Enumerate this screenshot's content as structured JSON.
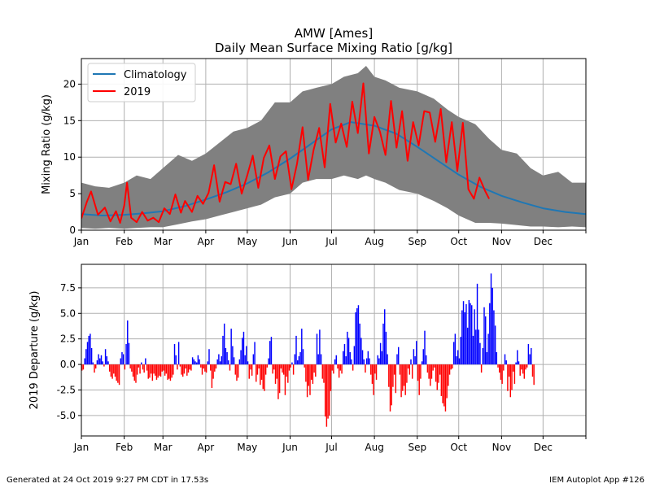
{
  "chart_data": [
    {
      "type": "line",
      "title": "AMW [Ames]",
      "subtitle": "Daily Mean Surface Mixing Ratio [g/kg]",
      "ylabel": "Mixing Ratio (g/kg)",
      "xlabel": "",
      "ylim": [
        0,
        23.5
      ],
      "xlim": [
        0,
        365
      ],
      "grid": true,
      "legend_position": "top-left",
      "x_ticks": [
        {
          "label": "Jan",
          "day": 0
        },
        {
          "label": "Feb",
          "day": 31
        },
        {
          "label": "Mar",
          "day": 59
        },
        {
          "label": "Apr",
          "day": 90
        },
        {
          "label": "May",
          "day": 120
        },
        {
          "label": "Jun",
          "day": 151
        },
        {
          "label": "Jul",
          "day": 181
        },
        {
          "label": "Aug",
          "day": 212
        },
        {
          "label": "Sep",
          "day": 243
        },
        {
          "label": "Oct",
          "day": 273
        },
        {
          "label": "Nov",
          "day": 304
        },
        {
          "label": "Dec",
          "day": 334
        }
      ],
      "y_ticks": [
        0,
        5,
        10,
        15,
        20
      ],
      "series": [
        {
          "name": "Climatology",
          "color": "#1f77b4",
          "x": [
            0,
            15,
            31,
            45,
            59,
            75,
            90,
            105,
            120,
            135,
            151,
            166,
            181,
            195,
            212,
            228,
            243,
            258,
            273,
            289,
            304,
            319,
            334,
            350,
            365
          ],
          "y": [
            2.2,
            2.0,
            2.1,
            2.3,
            2.6,
            3.3,
            4.2,
            5.2,
            6.4,
            7.9,
            9.8,
            11.8,
            13.8,
            14.8,
            14.3,
            13.2,
            11.4,
            9.5,
            7.6,
            5.9,
            4.7,
            3.8,
            3.0,
            2.5,
            2.2
          ]
        },
        {
          "name": "2019",
          "color": "#ff0000",
          "x": [
            0,
            4,
            7,
            12,
            17,
            21,
            25,
            28,
            31,
            33,
            36,
            40,
            44,
            48,
            52,
            56,
            60,
            64,
            68,
            72,
            75,
            80,
            84,
            88,
            92,
            96,
            100,
            104,
            108,
            112,
            116,
            120,
            124,
            128,
            132,
            136,
            140,
            144,
            148,
            152,
            156,
            160,
            164,
            168,
            172,
            176,
            180,
            184,
            188,
            192,
            196,
            200,
            204,
            208,
            212,
            216,
            220,
            224,
            228,
            232,
            236,
            240,
            244,
            248,
            252,
            256,
            260,
            264,
            268,
            272,
            276,
            280,
            284,
            288,
            292,
            295
          ],
          "y": [
            1.6,
            3.9,
            5.3,
            2.1,
            3.1,
            1.2,
            2.6,
            1.0,
            3.4,
            6.5,
            1.7,
            1.1,
            2.5,
            1.3,
            1.7,
            1.1,
            3.0,
            2.2,
            4.9,
            2.4,
            4.0,
            2.5,
            4.7,
            3.6,
            5.1,
            8.9,
            3.9,
            6.6,
            6.3,
            9.1,
            5.0,
            7.5,
            10.2,
            5.8,
            9.9,
            11.6,
            7.0,
            10.1,
            10.8,
            5.6,
            9.1,
            14.1,
            6.9,
            11.0,
            14.0,
            8.6,
            17.3,
            12.0,
            14.6,
            11.4,
            17.6,
            13.3,
            20.1,
            10.5,
            15.5,
            13.5,
            10.3,
            17.7,
            11.3,
            16.3,
            9.5,
            14.8,
            11.6,
            16.3,
            16.1,
            12.1,
            16.6,
            9.3,
            14.8,
            8.1,
            14.7,
            5.6,
            4.3,
            7.2,
            5.4,
            4.3
          ]
        }
      ],
      "range_band": {
        "name": "daily range",
        "color": "#808080",
        "x": [
          0,
          10,
          20,
          31,
          40,
          50,
          59,
          70,
          80,
          90,
          100,
          110,
          120,
          130,
          140,
          151,
          160,
          170,
          181,
          190,
          200,
          206,
          212,
          220,
          230,
          243,
          255,
          265,
          273,
          285,
          295,
          304,
          315,
          325,
          334,
          345,
          355,
          365
        ],
        "max": [
          6.5,
          6.0,
          5.8,
          6.5,
          7.5,
          7.0,
          8.5,
          10.3,
          9.5,
          10.5,
          12.0,
          13.5,
          14.0,
          15.0,
          17.5,
          17.5,
          19.0,
          19.5,
          20.0,
          21.0,
          21.5,
          22.5,
          21.0,
          20.5,
          19.5,
          19.0,
          18.0,
          16.5,
          15.5,
          14.5,
          12.5,
          11.0,
          10.5,
          8.5,
          7.5,
          8.0,
          6.5,
          6.5
        ],
        "min": [
          0.3,
          0.2,
          0.3,
          0.2,
          0.3,
          0.4,
          0.4,
          0.8,
          1.2,
          1.5,
          2.0,
          2.5,
          3.0,
          3.5,
          4.5,
          5.0,
          6.5,
          7.0,
          7.0,
          7.5,
          7.0,
          7.5,
          7.0,
          6.5,
          5.5,
          5.0,
          4.0,
          3.0,
          2.0,
          1.0,
          1.0,
          0.9,
          0.7,
          0.5,
          0.5,
          0.4,
          0.5,
          0.4
        ]
      }
    },
    {
      "type": "bar",
      "title": "",
      "ylabel": "2019 Departure (g/kg)",
      "xlabel": "",
      "ylim": [
        -7,
        9.8
      ],
      "xlim": [
        0,
        365
      ],
      "grid": true,
      "x_ticks": [
        {
          "label": "Jan",
          "day": 0
        },
        {
          "label": "Feb",
          "day": 31
        },
        {
          "label": "Mar",
          "day": 59
        },
        {
          "label": "Apr",
          "day": 90
        },
        {
          "label": "May",
          "day": 120
        },
        {
          "label": "Jun",
          "day": 151
        },
        {
          "label": "Jul",
          "day": 181
        },
        {
          "label": "Aug",
          "day": 212
        },
        {
          "label": "Sep",
          "day": 243
        },
        {
          "label": "Oct",
          "day": 273
        },
        {
          "label": "Nov",
          "day": 304
        },
        {
          "label": "Dec",
          "day": 334
        }
      ],
      "y_ticks": [
        -5.0,
        -2.5,
        0.0,
        2.5,
        5.0,
        7.5
      ],
      "positive_color": "#0000ff",
      "negative_color": "#ff0000",
      "bars": [
        -0.6,
        -0.5,
        0.6,
        1.5,
        2.2,
        2.8,
        3.0,
        1.6,
        0.2,
        -0.8,
        -0.4,
        0.4,
        1.0,
        0.6,
        0.9,
        0.3,
        -0.2,
        1.5,
        0.8,
        0.3,
        -0.7,
        -1.2,
        -1.4,
        -0.9,
        -1.2,
        -1.6,
        -1.8,
        -2.0,
        0.6,
        1.2,
        1.0,
        -0.5,
        2.0,
        4.3,
        2.1,
        -0.4,
        -0.7,
        -1.2,
        -1.6,
        -1.8,
        -1.0,
        -0.3,
        -0.9,
        0.2,
        -0.5,
        -0.8,
        0.6,
        -0.6,
        -1.4,
        -1.3,
        -0.9,
        -1.6,
        -0.9,
        -1.1,
        -1.5,
        -1.3,
        -1.1,
        -1.2,
        -0.7,
        -0.6,
        -1.1,
        -0.9,
        -1.5,
        -1.4,
        -1.6,
        -1.3,
        -1.0,
        2.0,
        0.9,
        -0.5,
        2.2,
        -0.2,
        -1.0,
        -1.2,
        -0.9,
        -0.4,
        -1.1,
        -0.8,
        -0.5,
        -0.6,
        0.7,
        0.5,
        0.3,
        0.2,
        0.9,
        0.5,
        -0.3,
        -1.0,
        -0.4,
        -0.7,
        -0.8,
        0.3,
        1.5,
        -0.6,
        -2.3,
        -1.4,
        -0.7,
        -0.4,
        0.5,
        1.0,
        0.3,
        0.8,
        2.8,
        4.0,
        1.6,
        1.2,
        0.4,
        -0.6,
        3.5,
        1.8,
        0.7,
        -1.0,
        -1.6,
        -1.3,
        0.5,
        1.4,
        2.6,
        3.2,
        0.9,
        1.8,
        0.3,
        -1.4,
        -0.5,
        -1.1,
        1.0,
        2.2,
        -1.7,
        -1.0,
        -0.4,
        -2.0,
        -1.5,
        -2.4,
        -2.6,
        -1.0,
        -0.3,
        0.6,
        2.3,
        2.7,
        -0.9,
        -0.5,
        -1.9,
        -1.4,
        -3.4,
        -2.8,
        -0.4,
        -0.8,
        -1.0,
        -3.0,
        -1.2,
        -1.8,
        -0.6,
        -0.3,
        0.2,
        -1.0,
        1.0,
        2.8,
        0.4,
        0.8,
        1.2,
        3.5,
        1.5,
        -0.3,
        -1.7,
        -3.2,
        -2.1,
        -3.0,
        -1.5,
        -1.9,
        -0.8,
        -1.2,
        3.0,
        1.0,
        3.4,
        1.0,
        -1.4,
        -1.8,
        -5.1,
        -6.1,
        -5.3,
        -5.0,
        -2.6,
        -0.6,
        -0.9,
        0.5,
        0.9,
        -0.4,
        -1.3,
        -0.6,
        -0.9,
        1.3,
        2.0,
        0.8,
        3.2,
        2.6,
        1.2,
        0.5,
        -0.6,
        1.8,
        5.1,
        5.5,
        5.8,
        4.0,
        2.6,
        1.4,
        0.5,
        -0.8,
        0.6,
        1.3,
        0.6,
        -1.0,
        -1.9,
        -3.0,
        -0.9,
        -1.5,
        0.9,
        0.6,
        2.1,
        1.3,
        4.0,
        5.4,
        3.2,
        1.0,
        -2.2,
        -4.6,
        -4.0,
        -2.2,
        -1.0,
        -2.8,
        1.0,
        1.7,
        -1.0,
        -3.2,
        -2.6,
        -2.1,
        -3.0,
        -1.8,
        -0.4,
        -1.0,
        0.5,
        -1.4,
        1.5,
        0.8,
        2.3,
        -1.6,
        -3.0,
        -1.4,
        0.3,
        1.5,
        3.3,
        0.9,
        -0.8,
        -1.4,
        -2.1,
        -1.4,
        -0.6,
        -0.3,
        -1.7,
        -2.5,
        -1.8,
        -1.0,
        -3.1,
        -3.8,
        -4.1,
        -4.6,
        -3.3,
        -2.1,
        -1.0,
        -0.5,
        -0.4,
        2.2,
        3.0,
        0.8,
        1.4,
        0.6,
        2.7,
        5.3,
        6.2,
        5.1,
        5.9,
        3.6,
        6.3,
        6.0,
        5.8,
        2.8,
        5.4,
        3.4,
        7.9,
        3.4,
        2.1,
        -0.8,
        1.6,
        5.6,
        4.7,
        1.2,
        3.0,
        6.0,
        8.9,
        7.5,
        5.3,
        3.8,
        1.2,
        -0.3,
        -0.8,
        -1.5,
        -1.9,
        -0.6,
        1.0,
        0.4,
        -2.6,
        -1.2,
        -3.2,
        -2.5,
        -0.7,
        -1.9,
        0.2,
        1.4,
        0.3,
        -1.1,
        -0.5,
        -0.9,
        -1.4,
        -0.5,
        -0.3,
        2.0,
        1.0,
        1.6,
        -1.2,
        -2.0
      ]
    }
  ],
  "footer": {
    "left": "Generated at 24 Oct 2019 9:27 PM CDT in 17.53s",
    "right": "IEM Autoplot App #126"
  }
}
